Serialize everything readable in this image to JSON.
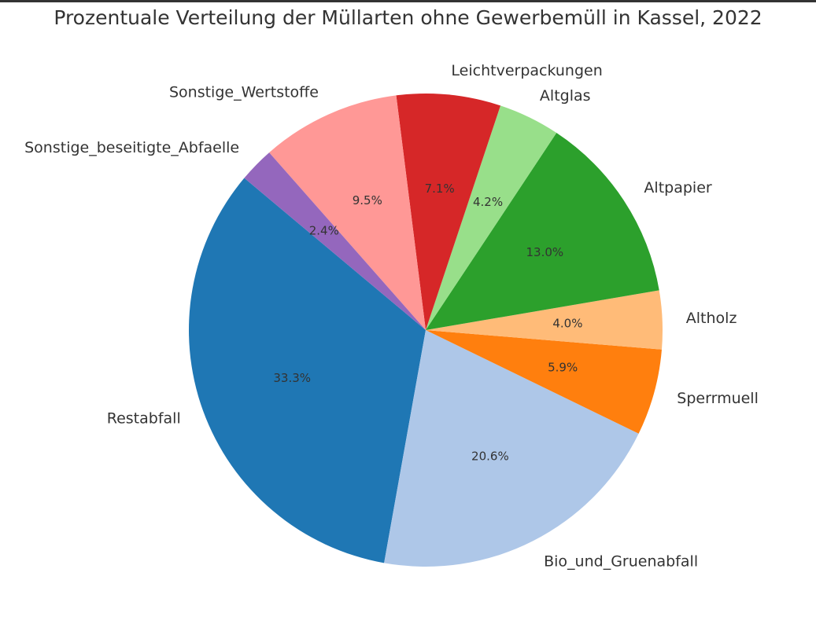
{
  "chart_data": {
    "type": "pie",
    "title": "Prozentuale Verteilung der Müllarten ohne Gewerbemüll in Kassel, 2022",
    "slices": [
      {
        "label": "Restabfall",
        "value": 33.3,
        "pct_label": "33.3%",
        "color": "#1f77b4"
      },
      {
        "label": "Bio_und_Gruenabfall",
        "value": 20.6,
        "pct_label": "20.6%",
        "color": "#aec7e8"
      },
      {
        "label": "Sperrmuell",
        "value": 5.9,
        "pct_label": "5.9%",
        "color": "#ff7f0e"
      },
      {
        "label": "Altholz",
        "value": 4.0,
        "pct_label": "4.0%",
        "color": "#ffbb78"
      },
      {
        "label": "Altpapier",
        "value": 13.0,
        "pct_label": "13.0%",
        "color": "#2ca02c"
      },
      {
        "label": "Altglas",
        "value": 4.2,
        "pct_label": "4.2%",
        "color": "#98df8a"
      },
      {
        "label": "Leichtverpackungen",
        "value": 7.1,
        "pct_label": "7.1%",
        "color": "#d62728"
      },
      {
        "label": "Sonstige_Wertstoffe",
        "value": 9.5,
        "pct_label": "9.5%",
        "color": "#ff9896"
      },
      {
        "label": "Sonstige_beseitigte_Abfaelle",
        "value": 2.4,
        "pct_label": "2.4%",
        "color": "#9467bd"
      }
    ],
    "start_angle_deg": 140,
    "direction": "counterclockwise"
  }
}
